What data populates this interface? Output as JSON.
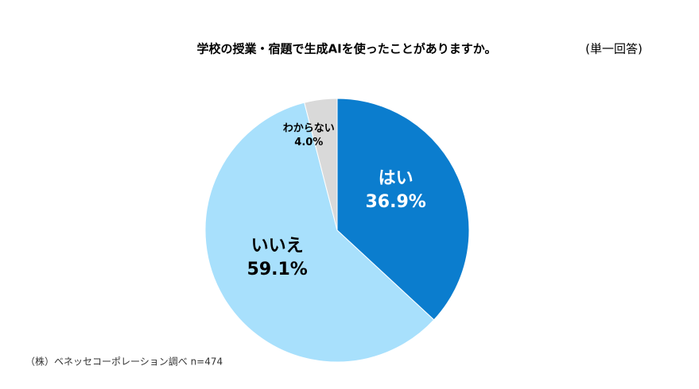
{
  "chart_data": {
    "type": "pie",
    "title": "学校の授業・宿題で生成AIを使ったことがありますか。",
    "subtitle": "(単一回答)",
    "source": "（株）ベネッセコーポレーション調べ n=474",
    "categories": [
      "はい",
      "いいえ",
      "わからない"
    ],
    "values": [
      36.9,
      59.1,
      4.0
    ],
    "value_labels": [
      "36.9%",
      "59.1%",
      "4.0%"
    ],
    "colors": [
      "#0b7dce",
      "#a8e0fc",
      "#d9d9d9"
    ]
  }
}
